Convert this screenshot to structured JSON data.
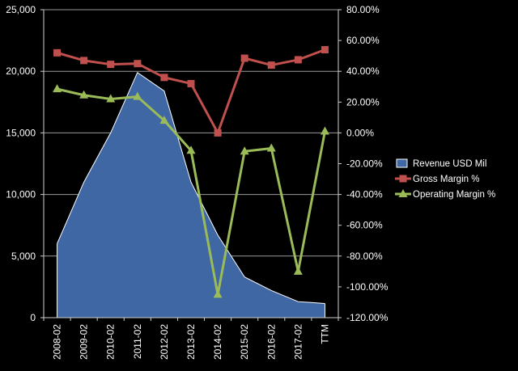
{
  "chart_data": {
    "type": "area",
    "categories": [
      "2008-02",
      "2009-02",
      "2010-02",
      "2011-02",
      "2012-02",
      "2013-02",
      "2014-02",
      "2015-02",
      "2016-02",
      "2017-02",
      "TTM"
    ],
    "left_axis": {
      "ylim": [
        0,
        25000
      ],
      "ticks": [
        0,
        5000,
        10000,
        15000,
        20000,
        25000
      ],
      "tick_labels": [
        "0",
        "5,000",
        "10,000",
        "15,000",
        "20,000",
        "25,000"
      ]
    },
    "right_axis": {
      "ylim": [
        -120,
        80
      ],
      "ticks": [
        -120,
        -100,
        -80,
        -60,
        -40,
        -20,
        0,
        20,
        40,
        60,
        80
      ],
      "tick_labels": [
        "-120.00%",
        "-100.00%",
        "-80.00%",
        "-60.00%",
        "-40.00%",
        "-20.00%",
        "0.00%",
        "20.00%",
        "40.00%",
        "60.00%",
        "80.00%"
      ]
    },
    "grid": true,
    "legend_position": "right",
    "series": [
      {
        "name": "Revenue USD Mil",
        "kind": "area",
        "axis": "left",
        "color": "#3f67a3",
        "edge": "#ffffff",
        "values": [
          6000,
          11000,
          15000,
          19900,
          18400,
          11000,
          6700,
          3300,
          2200,
          1300,
          1150
        ]
      },
      {
        "name": "Gross Margin %",
        "kind": "line",
        "axis": "right",
        "color": "#c0504d",
        "marker": "square",
        "values": [
          52,
          47,
          44.5,
          45,
          36,
          32,
          0,
          48.5,
          44,
          47.5,
          54
        ]
      },
      {
        "name": "Operating Margin %",
        "kind": "line",
        "axis": "right",
        "color": "#9bbb59",
        "marker": "triangle",
        "values": [
          28.5,
          24.5,
          22,
          23.5,
          8,
          -11.5,
          -105,
          -12,
          -10,
          -90,
          1
        ]
      }
    ]
  }
}
